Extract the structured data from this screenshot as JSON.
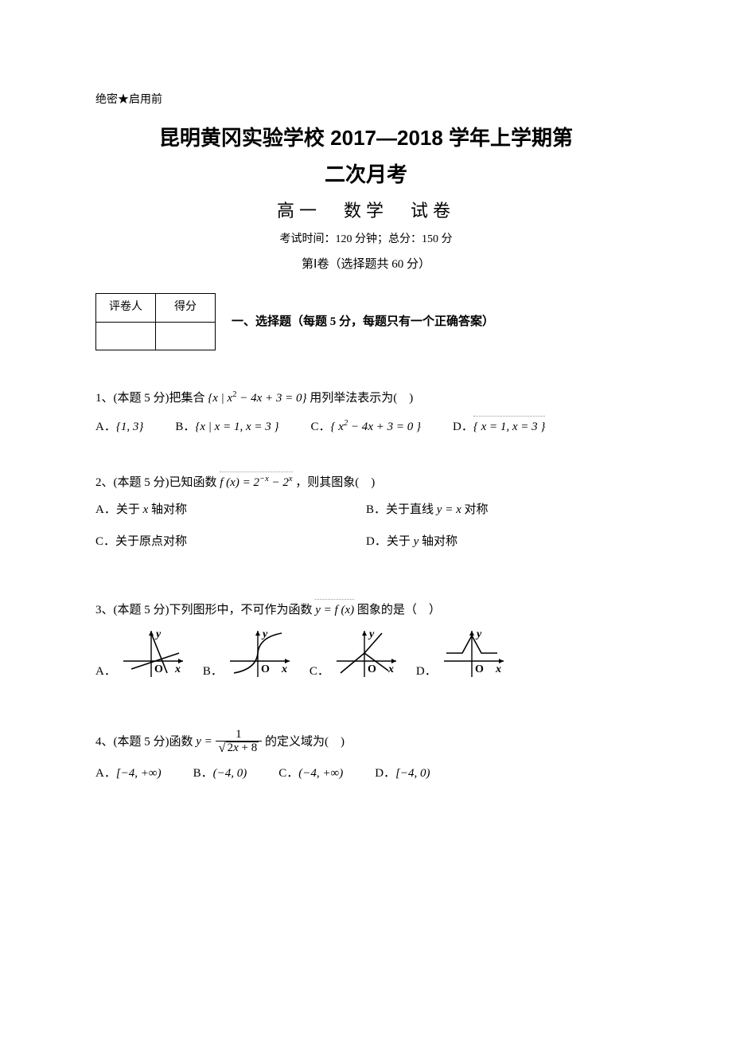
{
  "preHeader": "绝密★启用前",
  "titleLine1": "昆明黄冈实验学校 2017—2018 学年上学期第",
  "titleLine2": "二次月考",
  "subtitle": "高一　数学　试卷",
  "examInfo": "考试时间：120 分钟；总分：150 分",
  "sectionInfo": "第Ⅰ卷（选择题共 60 分）",
  "scoreTable": {
    "grader": "评卷人",
    "score": "得分"
  },
  "sectionHeading": "一、选择题（每题 5 分，每题只有一个正确答案）",
  "q1": {
    "pre": "1、(本题 5 分)把集合",
    "set": "{ x | x² − 4x + 3 = 0 }",
    "post": "用列举法表示为(　)",
    "A": "A．",
    "Aexpr": "{1, 3}",
    "B": "B．",
    "Bexpr": "{ x | x = 1, x = 3 }",
    "C": "C．",
    "Cexpr": "{ x² − 4x + 3 = 0 }",
    "D": "D．",
    "Dexpr": "{ x = 1, x = 3 }"
  },
  "q2": {
    "pre": "2、(本题 5 分)已知函数",
    "fx": "f (x) = 2⁻ˣ − 2ˣ",
    "post": "，则其图象(　)",
    "A": "A．关于 ",
    "Aaxis": "x",
    "Aend": " 轴对称",
    "B": "B．关于直线 ",
    "Bline": "y = x",
    "Bend": " 对称",
    "C": "C．关于原点对称",
    "D": "D．关于 ",
    "Daxis": "y",
    "Dend": " 轴对称"
  },
  "q3": {
    "pre": "3、(本题 5 分)下列图形中，不可作为函数 ",
    "fx": "y = f (x)",
    "post": " 图象的是（　）",
    "A": "A．",
    "B": "B．",
    "C": "C．",
    "D": "D．",
    "axisColor": "#000000",
    "labelFont": 14,
    "graphs": [
      {
        "type": "two-lines",
        "paths": [
          "M40 5 L60 55",
          "M15 50 L75 30"
        ]
      },
      {
        "type": "s-curve",
        "paths": [
          "M10 55 Q38 50 40 30 Q42 10 70 5"
        ]
      },
      {
        "type": "two-rays",
        "paths": [
          "M40 30 L10 55",
          "M40 30 L62 5",
          "M40 30 L70 52"
        ]
      },
      {
        "type": "tent",
        "paths": [
          "M8 30 L28 30 L40 8 L52 30 L72 30"
        ]
      }
    ]
  },
  "q4": {
    "pre": "4、(本题 5 分)函数 ",
    "lhs": "y = ",
    "num": "1",
    "radicand": "2x + 8",
    "post": " 的定义域为(　)",
    "A": "A．",
    "Aexpr": "[−4, +∞)",
    "B": "B．",
    "Bexpr": "(−4, 0)",
    "C": "C．",
    "Cexpr": "(−4, +∞)",
    "D": "D．",
    "Dexpr": "[−4, 0)"
  }
}
